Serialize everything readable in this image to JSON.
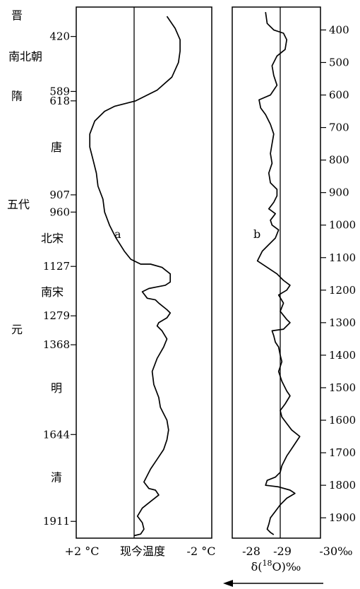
{
  "chart_data": [
    {
      "type": "line",
      "panel": "a",
      "panel_label": "a",
      "description_axis": "temperature anomaly relative to present",
      "x_tick_labels": {
        "left": "+2 °C",
        "center": "现今温度",
        "right": "-2 °C"
      },
      "xlim": [
        2,
        -2
      ],
      "y_axis": "year AD (increasing downward)",
      "ylim": [
        350,
        1960
      ],
      "reference_line": "现今温度",
      "left_axis_year_ticks": [
        "420",
        "589",
        "618",
        "907",
        "960",
        "1127",
        "1279",
        "1368",
        "1644",
        "1911"
      ],
      "left_axis_year_values": [
        420,
        589,
        618,
        907,
        960,
        1127,
        1279,
        1368,
        1644,
        1911
      ],
      "dynasties": [
        {
          "name": "晋",
          "year": 355
        },
        {
          "name": "南北朝",
          "year": 480
        },
        {
          "name": "隋",
          "year": 602
        },
        {
          "name": "唐",
          "year": 760
        },
        {
          "name": "五代",
          "year": 935
        },
        {
          "name": "北宋",
          "year": 1040
        },
        {
          "name": "南宋",
          "year": 1205
        },
        {
          "name": "元",
          "year": 1320
        },
        {
          "name": "明",
          "year": 1500
        },
        {
          "name": "清",
          "year": 1775
        }
      ],
      "series": [
        {
          "points": [
            [
              -1.0,
              358
            ],
            [
              -1.25,
              395
            ],
            [
              -1.4,
              430
            ],
            [
              -1.4,
              465
            ],
            [
              -1.35,
              500
            ],
            [
              -1.15,
              545
            ],
            [
              -0.7,
              585
            ],
            [
              -0.05,
              618
            ],
            [
              0.6,
              635
            ],
            [
              0.9,
              650
            ],
            [
              1.2,
              680
            ],
            [
              1.35,
              720
            ],
            [
              1.35,
              760
            ],
            [
              1.25,
              800
            ],
            [
              1.15,
              840
            ],
            [
              1.1,
              880
            ],
            [
              0.95,
              920
            ],
            [
              0.9,
              960
            ],
            [
              0.75,
              1000
            ],
            [
              0.55,
              1040
            ],
            [
              0.3,
              1080
            ],
            [
              0.1,
              1105
            ],
            [
              -0.2,
              1120
            ],
            [
              -0.5,
              1120
            ],
            [
              -0.85,
              1130
            ],
            [
              -1.1,
              1150
            ],
            [
              -1.1,
              1175
            ],
            [
              -0.95,
              1185
            ],
            [
              -0.7,
              1190
            ],
            [
              -0.45,
              1195
            ],
            [
              -0.25,
              1205
            ],
            [
              -0.4,
              1225
            ],
            [
              -0.65,
              1230
            ],
            [
              -0.75,
              1240
            ],
            [
              -1.0,
              1260
            ],
            [
              -1.1,
              1270
            ],
            [
              -1.0,
              1285
            ],
            [
              -0.75,
              1300
            ],
            [
              -0.7,
              1310
            ],
            [
              -0.85,
              1325
            ],
            [
              -1.0,
              1350
            ],
            [
              -0.9,
              1375
            ],
            [
              -0.7,
              1410
            ],
            [
              -0.55,
              1450
            ],
            [
              -0.6,
              1490
            ],
            [
              -0.75,
              1530
            ],
            [
              -0.8,
              1560
            ],
            [
              -0.9,
              1580
            ],
            [
              -1.0,
              1600
            ],
            [
              -1.05,
              1630
            ],
            [
              -1.0,
              1660
            ],
            [
              -0.9,
              1690
            ],
            [
              -0.7,
              1720
            ],
            [
              -0.5,
              1750
            ],
            [
              -0.3,
              1790
            ],
            [
              -0.45,
              1810
            ],
            [
              -0.65,
              1815
            ],
            [
              -0.75,
              1830
            ],
            [
              -0.5,
              1850
            ],
            [
              -0.25,
              1870
            ],
            [
              -0.1,
              1895
            ],
            [
              -0.25,
              1915
            ],
            [
              -0.3,
              1935
            ],
            [
              -0.2,
              1950
            ],
            [
              0.0,
              1955
            ]
          ]
        }
      ]
    },
    {
      "type": "line",
      "panel": "b",
      "panel_label": "b",
      "x_tick_labels": [
        "-28",
        "-29",
        "-30‰"
      ],
      "x_ticks": [
        -28,
        -29,
        -30
      ],
      "xlabel": "δ(18O)‰",
      "xlabel_parts": {
        "prefix": "δ(",
        "sup": "18",
        "suffix": "O)‰"
      },
      "xlim": [
        -27.55,
        -30.25
      ],
      "reference_x": -29,
      "y_axis": "year AD (increasing downward)",
      "ylim": [
        340,
        1960
      ],
      "right_axis_ticks": [
        400,
        500,
        600,
        700,
        800,
        900,
        1000,
        1100,
        1200,
        1300,
        1400,
        1500,
        1600,
        1700,
        1800,
        1900
      ],
      "direction_arrow": "leftward",
      "series": [
        {
          "points": [
            [
              -28.55,
              345
            ],
            [
              -28.6,
              380
            ],
            [
              -28.8,
              400
            ],
            [
              -29.1,
              410
            ],
            [
              -29.2,
              430
            ],
            [
              -29.15,
              460
            ],
            [
              -28.9,
              480
            ],
            [
              -28.75,
              510
            ],
            [
              -28.8,
              540
            ],
            [
              -28.9,
              570
            ],
            [
              -28.7,
              600
            ],
            [
              -28.35,
              615
            ],
            [
              -28.4,
              640
            ],
            [
              -28.55,
              660
            ],
            [
              -28.7,
              690
            ],
            [
              -28.8,
              720
            ],
            [
              -28.75,
              750
            ],
            [
              -28.7,
              780
            ],
            [
              -28.75,
              810
            ],
            [
              -28.65,
              840
            ],
            [
              -28.7,
              870
            ],
            [
              -28.9,
              890
            ],
            [
              -28.9,
              910
            ],
            [
              -28.8,
              930
            ],
            [
              -28.65,
              950
            ],
            [
              -28.85,
              965
            ],
            [
              -28.7,
              985
            ],
            [
              -28.75,
              1000
            ],
            [
              -28.95,
              1015
            ],
            [
              -28.85,
              1040
            ],
            [
              -28.65,
              1060
            ],
            [
              -28.45,
              1080
            ],
            [
              -28.3,
              1110
            ],
            [
              -28.6,
              1130
            ],
            [
              -28.9,
              1150
            ],
            [
              -29.1,
              1170
            ],
            [
              -29.3,
              1185
            ],
            [
              -29.2,
              1200
            ],
            [
              -28.95,
              1215
            ],
            [
              -29.1,
              1240
            ],
            [
              -29.0,
              1265
            ],
            [
              -29.2,
              1290
            ],
            [
              -29.3,
              1300
            ],
            [
              -29.1,
              1320
            ],
            [
              -28.75,
              1325
            ],
            [
              -28.8,
              1340
            ],
            [
              -28.85,
              1360
            ],
            [
              -28.95,
              1375
            ],
            [
              -29.0,
              1400
            ],
            [
              -29.05,
              1420
            ],
            [
              -28.95,
              1450
            ],
            [
              -29.05,
              1480
            ],
            [
              -29.2,
              1510
            ],
            [
              -29.3,
              1525
            ],
            [
              -29.15,
              1550
            ],
            [
              -29.0,
              1570
            ],
            [
              -29.05,
              1590
            ],
            [
              -29.2,
              1610
            ],
            [
              -29.35,
              1630
            ],
            [
              -29.6,
              1650
            ],
            [
              -29.4,
              1680
            ],
            [
              -29.2,
              1710
            ],
            [
              -29.05,
              1740
            ],
            [
              -29.0,
              1760
            ],
            [
              -28.85,
              1775
            ],
            [
              -28.6,
              1785
            ],
            [
              -28.55,
              1800
            ],
            [
              -28.95,
              1805
            ],
            [
              -29.3,
              1815
            ],
            [
              -29.45,
              1825
            ],
            [
              -29.2,
              1840
            ],
            [
              -29.0,
              1860
            ],
            [
              -28.85,
              1880
            ],
            [
              -28.7,
              1900
            ],
            [
              -28.65,
              1920
            ],
            [
              -28.6,
              1935
            ],
            [
              -28.7,
              1945
            ],
            [
              -28.8,
              1952
            ]
          ]
        }
      ]
    }
  ]
}
